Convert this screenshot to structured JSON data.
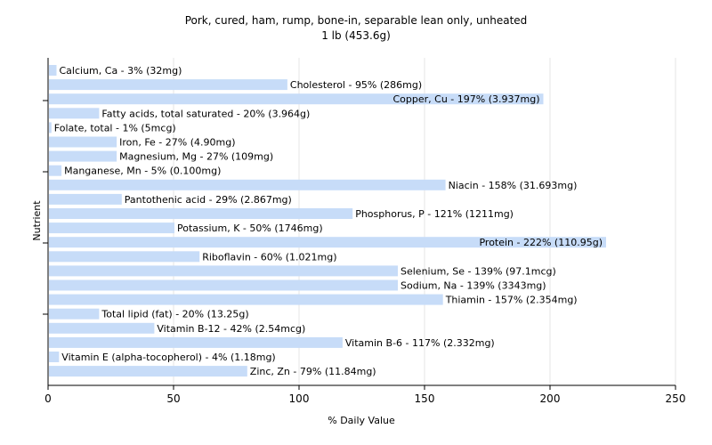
{
  "chart_data": {
    "type": "bar",
    "orientation": "horizontal",
    "title": "Pork, cured, ham, rump, bone-in, separable lean only, unheated",
    "subtitle": "1 lb (453.6g)",
    "xlabel": "% Daily Value",
    "ylabel": "Nutrient",
    "xlim": [
      0,
      250
    ],
    "xticks": [
      "0",
      "50",
      "100",
      "150",
      "200",
      "250"
    ],
    "grid": "vertical",
    "bar_color": "#c7dcf8",
    "categories": [
      "Calcium, Ca",
      "Cholesterol",
      "Copper, Cu",
      "Fatty acids, total saturated",
      "Folate, total",
      "Iron, Fe",
      "Magnesium, Mg",
      "Manganese, Mn",
      "Niacin",
      "Pantothenic acid",
      "Phosphorus, P",
      "Potassium, K",
      "Protein",
      "Riboflavin",
      "Selenium, Se",
      "Sodium, Na",
      "Thiamin",
      "Total lipid (fat)",
      "Vitamin B-12",
      "Vitamin B-6",
      "Vitamin E (alpha-tocopherol)",
      "Zinc, Zn"
    ],
    "values": [
      3,
      95,
      197,
      20,
      1,
      27,
      27,
      5,
      158,
      29,
      121,
      50,
      222,
      60,
      139,
      139,
      157,
      20,
      42,
      117,
      4,
      79
    ],
    "labels": [
      "Calcium, Ca - 3% (32mg)",
      "Cholesterol - 95% (286mg)",
      "Copper, Cu - 197% (3.937mg)",
      "Fatty acids, total saturated - 20% (3.964g)",
      "Folate, total - 1% (5mcg)",
      "Iron, Fe - 27% (4.90mg)",
      "Magnesium, Mg - 27% (109mg)",
      "Manganese, Mn - 5% (0.100mg)",
      "Niacin - 158% (31.693mg)",
      "Pantothenic acid - 29% (2.867mg)",
      "Phosphorus, P - 121% (1211mg)",
      "Potassium, K - 50% (1746mg)",
      "Protein - 222% (110.95g)",
      "Riboflavin - 60% (1.021mg)",
      "Selenium, Se - 139% (97.1mcg)",
      "Sodium, Na - 139% (3343mg)",
      "Thiamin - 157% (2.354mg)",
      "Total lipid (fat) - 20% (13.25g)",
      "Vitamin B-12 - 42% (2.54mcg)",
      "Vitamin B-6 - 117% (2.332mg)",
      "Vitamin E (alpha-tocopherol) - 4% (1.18mg)",
      "Zinc, Zn - 79% (11.84mg)"
    ],
    "label_inside": [
      false,
      false,
      true,
      false,
      false,
      false,
      false,
      false,
      false,
      false,
      false,
      false,
      true,
      false,
      false,
      false,
      false,
      false,
      false,
      false,
      false,
      false
    ]
  }
}
